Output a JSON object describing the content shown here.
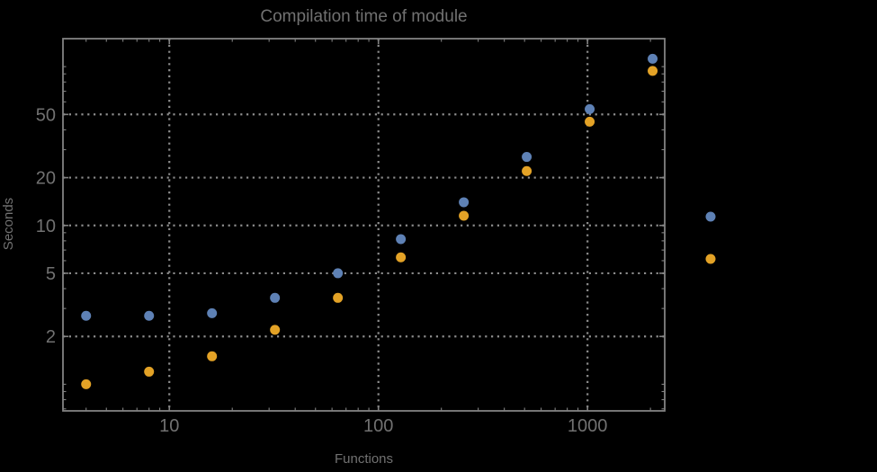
{
  "window": {
    "background": "#000000"
  },
  "colors": {
    "text": "#717171",
    "frame": "#828282",
    "grid": "#8c8c8c",
    "series1": "#5E81B5",
    "series2": "#E3A226",
    "background": "#000000"
  },
  "chart_data": {
    "type": "scatter",
    "title": "Compilation time of module",
    "xlabel": "Functions",
    "ylabel": "Seconds",
    "x_scale": "log",
    "y_scale": "log",
    "x_ticks": [
      10,
      100,
      1000
    ],
    "y_ticks": [
      2,
      5,
      10,
      20,
      50
    ],
    "x_range": [
      3.1,
      2340
    ],
    "y_range": [
      0.68,
      150
    ],
    "grid": "dotted-at-major-ticks",
    "x": [
      4,
      8,
      16,
      32,
      64,
      128,
      256,
      512,
      1024,
      2048
    ],
    "series": [
      {
        "name": "series-1-blue",
        "color": "#5E81B5",
        "values": [
          2.7,
          2.7,
          2.8,
          3.5,
          5.0,
          8.2,
          14,
          27,
          54,
          112
        ]
      },
      {
        "name": "series-2-orange",
        "color": "#E3A226",
        "values": [
          1.0,
          1.2,
          1.5,
          2.2,
          3.5,
          6.3,
          11.5,
          22,
          45,
          94
        ]
      }
    ],
    "legend": {
      "position": "right-outside",
      "labels_visible": false,
      "marker_colors": [
        "#5E81B5",
        "#E3A226"
      ]
    }
  }
}
